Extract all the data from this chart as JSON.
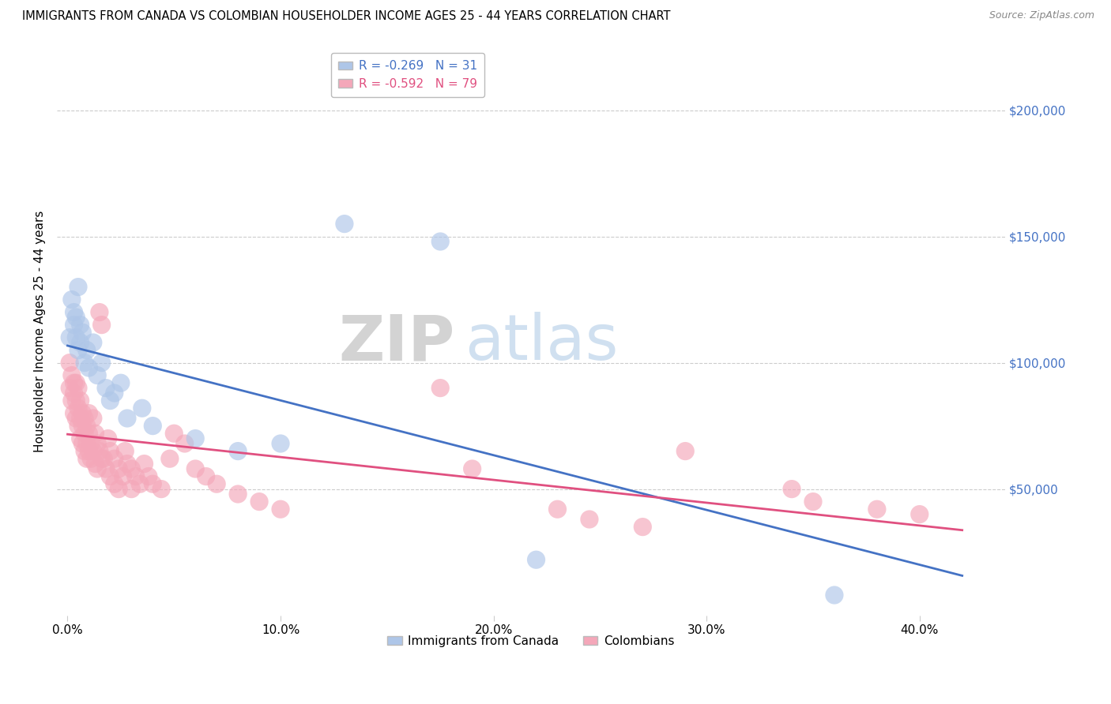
{
  "title": "IMMIGRANTS FROM CANADA VS COLOMBIAN HOUSEHOLDER INCOME AGES 25 - 44 YEARS CORRELATION CHART",
  "source": "Source: ZipAtlas.com",
  "ylabel": "Householder Income Ages 25 - 44 years",
  "xlabel_ticks": [
    "0.0%",
    "10.0%",
    "20.0%",
    "30.0%",
    "40.0%"
  ],
  "xlabel_vals": [
    0.0,
    0.1,
    0.2,
    0.3,
    0.4
  ],
  "ytick_labels": [
    "$50,000",
    "$100,000",
    "$150,000",
    "$200,000"
  ],
  "ytick_vals": [
    50000,
    100000,
    150000,
    200000
  ],
  "xlim": [
    -0.005,
    0.44
  ],
  "ylim": [
    0,
    225000
  ],
  "canada_R": "-0.269",
  "canada_N": "31",
  "colombia_R": "-0.592",
  "colombia_N": "79",
  "canada_color": "#aec6e8",
  "colombia_color": "#f4a7b9",
  "canada_line_color": "#4472c4",
  "colombia_line_color": "#e05080",
  "legend_label_canada": "Immigrants from Canada",
  "legend_label_colombia": "Colombians",
  "background_color": "#ffffff",
  "grid_color": "#cccccc",
  "ytick_color": "#4472c4",
  "canada_points": [
    [
      0.001,
      110000
    ],
    [
      0.002,
      125000
    ],
    [
      0.003,
      120000
    ],
    [
      0.003,
      115000
    ],
    [
      0.004,
      118000
    ],
    [
      0.004,
      110000
    ],
    [
      0.005,
      130000
    ],
    [
      0.005,
      105000
    ],
    [
      0.006,
      115000
    ],
    [
      0.006,
      108000
    ],
    [
      0.007,
      112000
    ],
    [
      0.008,
      100000
    ],
    [
      0.009,
      105000
    ],
    [
      0.01,
      98000
    ],
    [
      0.012,
      108000
    ],
    [
      0.014,
      95000
    ],
    [
      0.016,
      100000
    ],
    [
      0.018,
      90000
    ],
    [
      0.02,
      85000
    ],
    [
      0.022,
      88000
    ],
    [
      0.025,
      92000
    ],
    [
      0.028,
      78000
    ],
    [
      0.035,
      82000
    ],
    [
      0.04,
      75000
    ],
    [
      0.06,
      70000
    ],
    [
      0.08,
      65000
    ],
    [
      0.1,
      68000
    ],
    [
      0.13,
      155000
    ],
    [
      0.175,
      148000
    ],
    [
      0.22,
      22000
    ],
    [
      0.36,
      8000
    ]
  ],
  "colombia_points": [
    [
      0.001,
      100000
    ],
    [
      0.001,
      90000
    ],
    [
      0.002,
      95000
    ],
    [
      0.002,
      85000
    ],
    [
      0.003,
      92000
    ],
    [
      0.003,
      80000
    ],
    [
      0.003,
      88000
    ],
    [
      0.004,
      85000
    ],
    [
      0.004,
      78000
    ],
    [
      0.004,
      92000
    ],
    [
      0.005,
      82000
    ],
    [
      0.005,
      75000
    ],
    [
      0.005,
      90000
    ],
    [
      0.006,
      78000
    ],
    [
      0.006,
      70000
    ],
    [
      0.006,
      85000
    ],
    [
      0.007,
      75000
    ],
    [
      0.007,
      68000
    ],
    [
      0.007,
      80000
    ],
    [
      0.008,
      72000
    ],
    [
      0.008,
      65000
    ],
    [
      0.008,
      78000
    ],
    [
      0.009,
      68000
    ],
    [
      0.009,
      75000
    ],
    [
      0.009,
      62000
    ],
    [
      0.01,
      72000
    ],
    [
      0.01,
      65000
    ],
    [
      0.01,
      80000
    ],
    [
      0.011,
      68000
    ],
    [
      0.011,
      62000
    ],
    [
      0.012,
      78000
    ],
    [
      0.012,
      65000
    ],
    [
      0.013,
      72000
    ],
    [
      0.013,
      60000
    ],
    [
      0.014,
      68000
    ],
    [
      0.014,
      58000
    ],
    [
      0.015,
      120000
    ],
    [
      0.015,
      65000
    ],
    [
      0.016,
      115000
    ],
    [
      0.016,
      62000
    ],
    [
      0.017,
      62000
    ],
    [
      0.018,
      58000
    ],
    [
      0.019,
      70000
    ],
    [
      0.02,
      65000
    ],
    [
      0.02,
      55000
    ],
    [
      0.022,
      62000
    ],
    [
      0.022,
      52000
    ],
    [
      0.024,
      58000
    ],
    [
      0.024,
      50000
    ],
    [
      0.026,
      55000
    ],
    [
      0.027,
      65000
    ],
    [
      0.028,
      60000
    ],
    [
      0.03,
      58000
    ],
    [
      0.03,
      50000
    ],
    [
      0.032,
      55000
    ],
    [
      0.034,
      52000
    ],
    [
      0.036,
      60000
    ],
    [
      0.038,
      55000
    ],
    [
      0.04,
      52000
    ],
    [
      0.044,
      50000
    ],
    [
      0.048,
      62000
    ],
    [
      0.05,
      72000
    ],
    [
      0.055,
      68000
    ],
    [
      0.06,
      58000
    ],
    [
      0.065,
      55000
    ],
    [
      0.07,
      52000
    ],
    [
      0.08,
      48000
    ],
    [
      0.09,
      45000
    ],
    [
      0.1,
      42000
    ],
    [
      0.175,
      90000
    ],
    [
      0.19,
      58000
    ],
    [
      0.23,
      42000
    ],
    [
      0.245,
      38000
    ],
    [
      0.27,
      35000
    ],
    [
      0.29,
      65000
    ],
    [
      0.34,
      50000
    ],
    [
      0.35,
      45000
    ],
    [
      0.38,
      42000
    ],
    [
      0.4,
      40000
    ]
  ]
}
